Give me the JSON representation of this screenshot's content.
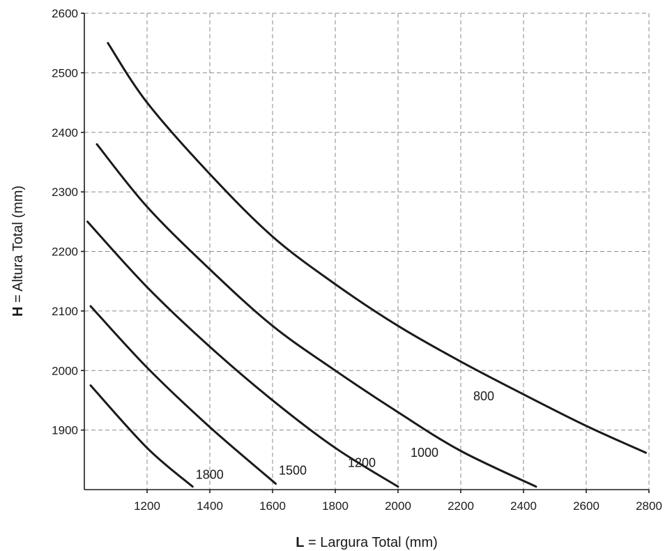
{
  "chart_data": {
    "type": "line",
    "xlabel_bold": "L",
    "xlabel_rest": " = Largura Total (mm)",
    "ylabel_bold": "H",
    "ylabel_rest": " = Altura Total (mm)",
    "xlim": [
      1000,
      2800
    ],
    "ylim": [
      1800,
      2600
    ],
    "x_ticks": [
      1200,
      1400,
      1600,
      1800,
      2000,
      2200,
      2400,
      2600,
      2800
    ],
    "y_ticks": [
      1900,
      2000,
      2100,
      2200,
      2300,
      2400,
      2500,
      2600
    ],
    "x_grid": [
      1200,
      1400,
      1600,
      1800,
      2000,
      2200,
      2400,
      2600,
      2800
    ],
    "y_grid": [
      1900,
      2000,
      2100,
      2200,
      2300,
      2400,
      2500,
      2600
    ],
    "grid": true,
    "series": [
      {
        "name": "800",
        "label": {
          "x": 2240,
          "y": 1950
        },
        "points": [
          [
            1075,
            2550
          ],
          [
            1200,
            2450
          ],
          [
            1400,
            2330
          ],
          [
            1600,
            2225
          ],
          [
            1800,
            2145
          ],
          [
            2000,
            2075
          ],
          [
            2200,
            2015
          ],
          [
            2400,
            1960
          ],
          [
            2600,
            1907
          ],
          [
            2790,
            1862
          ]
        ]
      },
      {
        "name": "1000",
        "label": {
          "x": 2040,
          "y": 1855
        },
        "points": [
          [
            1040,
            2380
          ],
          [
            1200,
            2275
          ],
          [
            1400,
            2170
          ],
          [
            1600,
            2075
          ],
          [
            1800,
            2000
          ],
          [
            2000,
            1930
          ],
          [
            2200,
            1865
          ],
          [
            2440,
            1805
          ]
        ]
      },
      {
        "name": "1200",
        "label": {
          "x": 1840,
          "y": 1838
        },
        "points": [
          [
            1010,
            2250
          ],
          [
            1200,
            2140
          ],
          [
            1400,
            2040
          ],
          [
            1600,
            1950
          ],
          [
            1800,
            1870
          ],
          [
            2000,
            1805
          ]
        ]
      },
      {
        "name": "1500",
        "label": {
          "x": 1620,
          "y": 1825
        },
        "points": [
          [
            1020,
            2108
          ],
          [
            1200,
            2005
          ],
          [
            1400,
            1905
          ],
          [
            1610,
            1810
          ]
        ]
      },
      {
        "name": "1800",
        "label": {
          "x": 1355,
          "y": 1818
        },
        "points": [
          [
            1020,
            1975
          ],
          [
            1200,
            1870
          ],
          [
            1345,
            1805
          ]
        ]
      }
    ]
  }
}
